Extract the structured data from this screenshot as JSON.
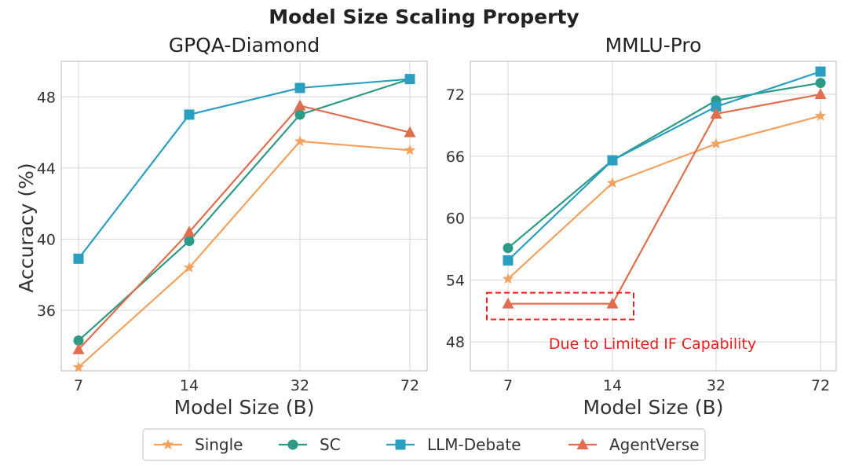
{
  "figure": {
    "title": "Model Size Scaling Property",
    "legend": {
      "placement": "bottom-center",
      "entries": [
        {
          "name": "Single",
          "color": "#f2a15e",
          "marker": "star"
        },
        {
          "name": "SC",
          "color": "#2c9a84",
          "marker": "circle"
        },
        {
          "name": "LLM-Debate",
          "color": "#2b9fc0",
          "marker": "square"
        },
        {
          "name": "AgentVerse",
          "color": "#e06e4e",
          "marker": "triangle"
        }
      ]
    }
  },
  "chart_data": [
    {
      "type": "line",
      "title": "GPQA-Diamond",
      "xlabel": "Model Size (B)",
      "ylabel": "Accuracy (%)",
      "categories": [
        "7",
        "14",
        "32",
        "72"
      ],
      "ylim": [
        32.6,
        50.0
      ],
      "yticks": [
        36,
        40,
        44,
        48
      ],
      "grid": true,
      "series": [
        {
          "name": "Single",
          "values": [
            32.8,
            38.4,
            45.5,
            45.0
          ]
        },
        {
          "name": "SC",
          "values": [
            34.3,
            39.9,
            47.0,
            49.0
          ]
        },
        {
          "name": "LLM-Debate",
          "values": [
            38.9,
            47.0,
            48.5,
            49.0
          ]
        },
        {
          "name": "AgentVerse",
          "values": [
            33.8,
            40.4,
            47.5,
            46.0
          ]
        }
      ]
    },
    {
      "type": "line",
      "title": "MMLU-Pro",
      "xlabel": "Model Size (B)",
      "ylabel": "",
      "categories": [
        "7",
        "14",
        "32",
        "72"
      ],
      "ylim": [
        45.2,
        75.2
      ],
      "yticks": [
        48,
        54,
        60,
        66,
        72
      ],
      "grid": true,
      "series": [
        {
          "name": "Single",
          "values": [
            54.1,
            63.4,
            67.2,
            69.9
          ]
        },
        {
          "name": "SC",
          "values": [
            57.1,
            65.6,
            71.4,
            73.1
          ]
        },
        {
          "name": "LLM-Debate",
          "values": [
            55.9,
            65.6,
            70.8,
            74.2
          ]
        },
        {
          "name": "AgentVerse",
          "values": [
            51.7,
            51.7,
            70.1,
            72.0
          ]
        }
      ],
      "annotation": {
        "text": "Due to Limited IF Capability",
        "x_range": [
          "7",
          "14"
        ],
        "y": 51.7,
        "color": "#ee1c1c"
      }
    }
  ]
}
